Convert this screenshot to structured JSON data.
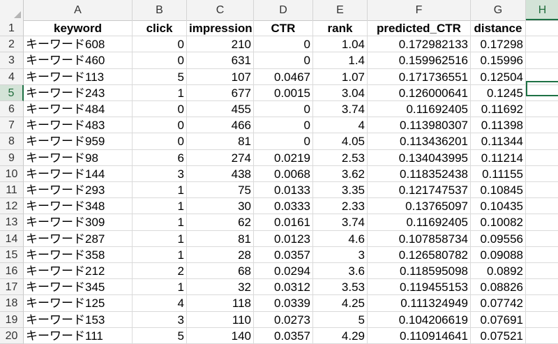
{
  "sheet": {
    "column_letters": [
      "A",
      "B",
      "C",
      "D",
      "E",
      "F",
      "G",
      "H"
    ],
    "selected_column": "H",
    "selected_row": "5",
    "row_numbers": [
      "1",
      "2",
      "3",
      "4",
      "5",
      "6",
      "7",
      "8",
      "9",
      "10",
      "11",
      "12",
      "13",
      "14",
      "15",
      "16",
      "17",
      "18",
      "19",
      "20"
    ],
    "headers": [
      "keyword",
      "click",
      "impression",
      "CTR",
      "rank",
      "predicted_CTR",
      "distance"
    ],
    "rows": [
      [
        "キーワード608",
        "0",
        "210",
        "0",
        "1.04",
        "0.172982133",
        "0.17298"
      ],
      [
        "キーワード460",
        "0",
        "631",
        "0",
        "1.4",
        "0.159962516",
        "0.15996"
      ],
      [
        "キーワード113",
        "5",
        "107",
        "0.0467",
        "1.07",
        "0.171736551",
        "0.12504"
      ],
      [
        "キーワード243",
        "1",
        "677",
        "0.0015",
        "3.04",
        "0.126000641",
        "0.1245"
      ],
      [
        "キーワード484",
        "0",
        "455",
        "0",
        "3.74",
        "0.11692405",
        "0.11692"
      ],
      [
        "キーワード483",
        "0",
        "466",
        "0",
        "4",
        "0.113980307",
        "0.11398"
      ],
      [
        "キーワード959",
        "0",
        "81",
        "0",
        "4.05",
        "0.113436201",
        "0.11344"
      ],
      [
        "キーワード98",
        "6",
        "274",
        "0.0219",
        "2.53",
        "0.134043995",
        "0.11214"
      ],
      [
        "キーワード144",
        "3",
        "438",
        "0.0068",
        "3.62",
        "0.118352438",
        "0.11155"
      ],
      [
        "キーワード293",
        "1",
        "75",
        "0.0133",
        "3.35",
        "0.121747537",
        "0.10845"
      ],
      [
        "キーワード348",
        "1",
        "30",
        "0.0333",
        "2.33",
        "0.13765097",
        "0.10435"
      ],
      [
        "キーワード309",
        "1",
        "62",
        "0.0161",
        "3.74",
        "0.11692405",
        "0.10082"
      ],
      [
        "キーワード287",
        "1",
        "81",
        "0.0123",
        "4.6",
        "0.107858734",
        "0.09556"
      ],
      [
        "キーワード358",
        "1",
        "28",
        "0.0357",
        "3",
        "0.126580782",
        "0.09088"
      ],
      [
        "キーワード212",
        "2",
        "68",
        "0.0294",
        "3.6",
        "0.118595098",
        "0.0892"
      ],
      [
        "キーワード345",
        "1",
        "32",
        "0.0312",
        "3.53",
        "0.119455153",
        "0.08826"
      ],
      [
        "キーワード125",
        "4",
        "118",
        "0.0339",
        "4.25",
        "0.111324949",
        "0.07742"
      ],
      [
        "キーワード153",
        "3",
        "110",
        "0.0273",
        "5",
        "0.104206619",
        "0.07691"
      ],
      [
        "キーワード111",
        "5",
        "140",
        "0.0357",
        "4.29",
        "0.110914641",
        "0.07521"
      ]
    ]
  },
  "colors": {
    "accent": "#1e7145",
    "header_bg": "#f3f3f3",
    "selected_header_bg": "#d3e3d7",
    "gridline": "#dadada"
  }
}
